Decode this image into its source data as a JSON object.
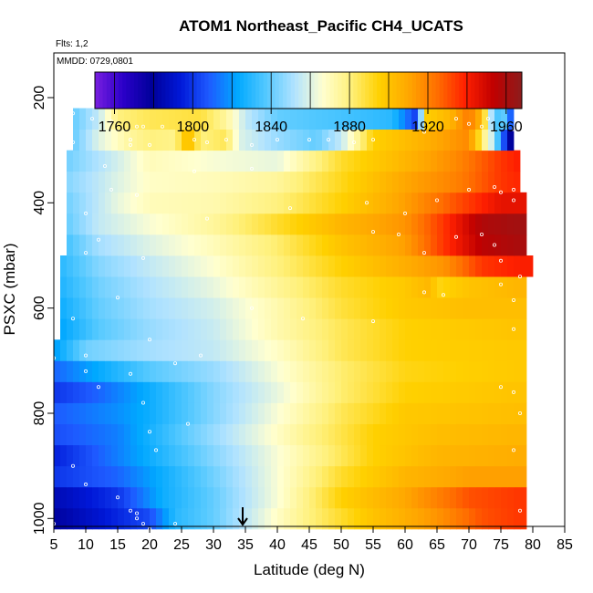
{
  "chart_data": {
    "type": "heatmap",
    "title": "ATOM1 Northeast_Pacific CH4_UCATS",
    "annotations": {
      "flights": "Flts: 1,2",
      "dates": "MMDD: 0729,0801"
    },
    "xlabel": "Latitude (deg N)",
    "ylabel": "PSXC (mbar)",
    "xlim": [
      5,
      85
    ],
    "ylim": [
      1015,
      115
    ],
    "y_inverted": true,
    "x_ticks": [
      "5",
      "10",
      "15",
      "20",
      "25",
      "30",
      "35",
      "40",
      "45",
      "50",
      "55",
      "60",
      "65",
      "70",
      "75",
      "80",
      "85"
    ],
    "y_ticks": [
      "200",
      "400",
      "600",
      "800",
      "1000"
    ],
    "colorbar": {
      "range": [
        1750,
        1968
      ],
      "ticks": [
        "1760",
        "1800",
        "1840",
        "1880",
        "1920",
        "1960"
      ],
      "colors": [
        "#7a1fe0",
        "#2a00c8",
        "#00009a",
        "#0018d8",
        "#1e5aff",
        "#00a8ff",
        "#52c8ff",
        "#b0e2ff",
        "#ffffd0",
        "#fff07a",
        "#ffd000",
        "#ffa800",
        "#ff7000",
        "#ff2000",
        "#c00000",
        "#8c1c1c"
      ]
    },
    "marker": {
      "latitude": 35,
      "symbol": "arrow"
    },
    "levels": [
      {
        "p": 1000,
        "x0": 5,
        "x1": 79,
        "anchors": [
          [
            5,
            1780
          ],
          [
            20,
            1805
          ],
          [
            24,
            1830
          ],
          [
            30,
            1840
          ],
          [
            40,
            1868
          ],
          [
            45,
            1880
          ],
          [
            55,
            1900
          ],
          [
            65,
            1915
          ],
          [
            72,
            1930
          ],
          [
            78,
            1935
          ]
        ]
      },
      {
        "p": 960,
        "x0": 5,
        "x1": 79,
        "anchors": [
          [
            5,
            1785
          ],
          [
            15,
            1800
          ],
          [
            22,
            1825
          ],
          [
            30,
            1840
          ],
          [
            40,
            1865
          ],
          [
            50,
            1895
          ],
          [
            60,
            1910
          ],
          [
            70,
            1930
          ],
          [
            78,
            1935
          ]
        ]
      },
      {
        "p": 920,
        "x0": 5,
        "x1": 79,
        "anchors": [
          [
            5,
            1800
          ],
          [
            15,
            1810
          ],
          [
            22,
            1825
          ],
          [
            30,
            1842
          ],
          [
            40,
            1865
          ],
          [
            50,
            1890
          ],
          [
            60,
            1905
          ],
          [
            70,
            1912
          ],
          [
            78,
            1912
          ]
        ]
      },
      {
        "p": 880,
        "x0": 5,
        "x1": 79,
        "anchors": [
          [
            5,
            1795
          ],
          [
            15,
            1815
          ],
          [
            25,
            1835
          ],
          [
            35,
            1855
          ],
          [
            45,
            1875
          ],
          [
            55,
            1895
          ],
          [
            65,
            1905
          ],
          [
            78,
            1908
          ]
        ]
      },
      {
        "p": 840,
        "x0": 5,
        "x1": 79,
        "anchors": [
          [
            5,
            1805
          ],
          [
            15,
            1815
          ],
          [
            25,
            1838
          ],
          [
            35,
            1858
          ],
          [
            45,
            1878
          ],
          [
            55,
            1895
          ],
          [
            65,
            1902
          ],
          [
            78,
            1905
          ]
        ]
      },
      {
        "p": 800,
        "x0": 5,
        "x1": 79,
        "anchors": [
          [
            5,
            1808
          ],
          [
            15,
            1818
          ],
          [
            20,
            1825
          ],
          [
            30,
            1845
          ],
          [
            40,
            1865
          ],
          [
            50,
            1885
          ],
          [
            60,
            1898
          ],
          [
            78,
            1902
          ]
        ]
      },
      {
        "p": 760,
        "x0": 5,
        "x1": 79,
        "anchors": [
          [
            5,
            1800
          ],
          [
            12,
            1810
          ],
          [
            20,
            1825
          ],
          [
            30,
            1845
          ],
          [
            40,
            1862
          ],
          [
            50,
            1882
          ],
          [
            60,
            1895
          ],
          [
            78,
            1900
          ]
        ]
      },
      {
        "p": 720,
        "x0": 5,
        "x1": 79,
        "anchors": [
          [
            5,
            1810
          ],
          [
            10,
            1820
          ],
          [
            20,
            1838
          ],
          [
            30,
            1848
          ],
          [
            40,
            1865
          ],
          [
            50,
            1882
          ],
          [
            60,
            1893
          ],
          [
            78,
            1898
          ]
        ]
      },
      {
        "p": 680,
        "x0": 5,
        "x1": 79,
        "anchors": [
          [
            5,
            1820
          ],
          [
            10,
            1842
          ],
          [
            20,
            1850
          ],
          [
            30,
            1855
          ],
          [
            40,
            1868
          ],
          [
            50,
            1885
          ],
          [
            60,
            1895
          ],
          [
            78,
            1898
          ]
        ]
      },
      {
        "p": 640,
        "x0": 6,
        "x1": 79,
        "anchors": [
          [
            6,
            1822
          ],
          [
            12,
            1838
          ],
          [
            20,
            1848
          ],
          [
            30,
            1856
          ],
          [
            40,
            1872
          ],
          [
            50,
            1885
          ],
          [
            60,
            1895
          ],
          [
            78,
            1900
          ]
        ]
      },
      {
        "p": 600,
        "x0": 6,
        "x1": 79,
        "anchors": [
          [
            6,
            1825
          ],
          [
            12,
            1840
          ],
          [
            20,
            1850
          ],
          [
            30,
            1858
          ],
          [
            40,
            1872
          ],
          [
            50,
            1888
          ],
          [
            60,
            1898
          ],
          [
            70,
            1902
          ],
          [
            78,
            1902
          ]
        ]
      },
      {
        "p": 560,
        "x0": 6,
        "x1": 79,
        "anchors": [
          [
            6,
            1828
          ],
          [
            12,
            1842
          ],
          [
            20,
            1852
          ],
          [
            30,
            1862
          ],
          [
            40,
            1876
          ],
          [
            50,
            1890
          ],
          [
            60,
            1898
          ],
          [
            64,
            1905
          ],
          [
            65,
            1893
          ],
          [
            70,
            1900
          ],
          [
            78,
            1905
          ]
        ]
      },
      {
        "p": 520,
        "x0": 6,
        "x1": 80,
        "anchors": [
          [
            6,
            1830
          ],
          [
            12,
            1845
          ],
          [
            20,
            1855
          ],
          [
            30,
            1866
          ],
          [
            40,
            1880
          ],
          [
            50,
            1895
          ],
          [
            60,
            1908
          ],
          [
            66,
            1915
          ],
          [
            72,
            1935
          ],
          [
            78,
            1940
          ]
        ]
      },
      {
        "p": 480,
        "x0": 7,
        "x1": 79,
        "anchors": [
          [
            7,
            1835
          ],
          [
            12,
            1850
          ],
          [
            20,
            1860
          ],
          [
            30,
            1870
          ],
          [
            40,
            1882
          ],
          [
            50,
            1900
          ],
          [
            60,
            1912
          ],
          [
            66,
            1935
          ],
          [
            72,
            1955
          ],
          [
            78,
            1960
          ]
        ]
      },
      {
        "p": 440,
        "x0": 7,
        "x1": 79,
        "anchors": [
          [
            7,
            1840
          ],
          [
            12,
            1855
          ],
          [
            20,
            1865
          ],
          [
            30,
            1875
          ],
          [
            40,
            1890
          ],
          [
            50,
            1905
          ],
          [
            60,
            1915
          ],
          [
            66,
            1935
          ],
          [
            72,
            1958
          ],
          [
            78,
            1962
          ]
        ]
      },
      {
        "p": 400,
        "x0": 7,
        "x1": 79,
        "anchors": [
          [
            7,
            1842
          ],
          [
            15,
            1862
          ],
          [
            20,
            1870
          ],
          [
            30,
            1872
          ],
          [
            40,
            1880
          ],
          [
            50,
            1895
          ],
          [
            60,
            1912
          ],
          [
            68,
            1930
          ],
          [
            75,
            1945
          ],
          [
            78,
            1945
          ]
        ]
      },
      {
        "p": 360,
        "x0": 7,
        "x1": 78,
        "anchors": [
          [
            7,
            1845
          ],
          [
            15,
            1860
          ],
          [
            20,
            1868
          ],
          [
            30,
            1870
          ],
          [
            40,
            1875
          ],
          [
            50,
            1892
          ],
          [
            60,
            1910
          ],
          [
            68,
            1920
          ],
          [
            75,
            1935
          ],
          [
            78,
            1938
          ]
        ]
      },
      {
        "p": 320,
        "x0": 7,
        "x1": 78,
        "anchors": [
          [
            7,
            1842
          ],
          [
            15,
            1858
          ],
          [
            20,
            1870
          ],
          [
            30,
            1865
          ],
          [
            40,
            1862
          ],
          [
            50,
            1890
          ],
          [
            60,
            1905
          ],
          [
            68,
            1918
          ],
          [
            75,
            1935
          ],
          [
            78,
            1940
          ]
        ]
      },
      {
        "p": 280,
        "x0": 8,
        "x1": 77,
        "anchors": [
          [
            8,
            1840
          ],
          [
            12,
            1860
          ],
          [
            17,
            1875
          ],
          [
            20,
            1880
          ],
          [
            24,
            1878
          ],
          [
            26,
            1905
          ],
          [
            28,
            1880
          ],
          [
            32,
            1885
          ],
          [
            34,
            1860
          ],
          [
            40,
            1848
          ],
          [
            46,
            1840
          ],
          [
            50,
            1855
          ],
          [
            55,
            1895
          ],
          [
            62,
            1905
          ],
          [
            70,
            1918
          ],
          [
            74,
            1850
          ],
          [
            76,
            1790
          ],
          [
            77,
            1770
          ]
        ]
      },
      {
        "p": 240,
        "x0": 8,
        "x1": 77,
        "anchors": [
          [
            8,
            1840
          ],
          [
            12,
            1855
          ],
          [
            15,
            1880
          ],
          [
            20,
            1885
          ],
          [
            28,
            1888
          ],
          [
            32,
            1875
          ],
          [
            35,
            1855
          ],
          [
            40,
            1840
          ],
          [
            50,
            1835
          ],
          [
            58,
            1830
          ],
          [
            62,
            1800
          ],
          [
            63,
            1895
          ],
          [
            67,
            1905
          ],
          [
            70,
            1922
          ],
          [
            72,
            1905
          ],
          [
            74,
            1835
          ],
          [
            76,
            1840
          ],
          [
            77,
            1780
          ]
        ]
      },
      {
        "p": 200,
        "x0": 31,
        "x1": 34,
        "anchors": [
          [
            31,
            1870
          ],
          [
            32,
            1860
          ],
          [
            33,
            1840
          ],
          [
            34,
            1835
          ]
        ]
      }
    ],
    "sample_points": [
      [
        8,
        230
      ],
      [
        8,
        285
      ],
      [
        11,
        240
      ],
      [
        14,
        245
      ],
      [
        17,
        290
      ],
      [
        18,
        255
      ],
      [
        17,
        280
      ],
      [
        19,
        255
      ],
      [
        22,
        255
      ],
      [
        20,
        290
      ],
      [
        27,
        280
      ],
      [
        29,
        285
      ],
      [
        32,
        280
      ],
      [
        36,
        290
      ],
      [
        40,
        280
      ],
      [
        45,
        280
      ],
      [
        48,
        280
      ],
      [
        52,
        285
      ],
      [
        55,
        280
      ],
      [
        63,
        265
      ],
      [
        68,
        240
      ],
      [
        70,
        250
      ],
      [
        72,
        255
      ],
      [
        73,
        240
      ],
      [
        77,
        260
      ],
      [
        13,
        330
      ],
      [
        14,
        375
      ],
      [
        18,
        385
      ],
      [
        27,
        340
      ],
      [
        36,
        335
      ],
      [
        42,
        410
      ],
      [
        54,
        400
      ],
      [
        60,
        420
      ],
      [
        65,
        395
      ],
      [
        70,
        375
      ],
      [
        74,
        370
      ],
      [
        75,
        380
      ],
      [
        77,
        375
      ],
      [
        77,
        395
      ],
      [
        10,
        420
      ],
      [
        10,
        495
      ],
      [
        12,
        470
      ],
      [
        19,
        505
      ],
      [
        29,
        430
      ],
      [
        55,
        455
      ],
      [
        59,
        460
      ],
      [
        63,
        495
      ],
      [
        68,
        465
      ],
      [
        72,
        460
      ],
      [
        74,
        480
      ],
      [
        75,
        510
      ],
      [
        78,
        540
      ],
      [
        8,
        620
      ],
      [
        15,
        580
      ],
      [
        20,
        660
      ],
      [
        24,
        705
      ],
      [
        28,
        690
      ],
      [
        36,
        600
      ],
      [
        44,
        620
      ],
      [
        55,
        625
      ],
      [
        63,
        570
      ],
      [
        66,
        575
      ],
      [
        75,
        555
      ],
      [
        77,
        585
      ],
      [
        77,
        640
      ],
      [
        5,
        695
      ],
      [
        10,
        690
      ],
      [
        10,
        720
      ],
      [
        12,
        750
      ],
      [
        17,
        725
      ],
      [
        19,
        780
      ],
      [
        20,
        835
      ],
      [
        21,
        870
      ],
      [
        26,
        820
      ],
      [
        75,
        750
      ],
      [
        77,
        760
      ],
      [
        78,
        800
      ],
      [
        77,
        870
      ],
      [
        8,
        900
      ],
      [
        10,
        935
      ],
      [
        15,
        960
      ],
      [
        17,
        985
      ],
      [
        18,
        990
      ],
      [
        18,
        1000
      ],
      [
        19,
        1010
      ],
      [
        20,
        1020
      ],
      [
        24,
        1010
      ],
      [
        5,
        1010
      ],
      [
        78,
        985
      ]
    ]
  }
}
